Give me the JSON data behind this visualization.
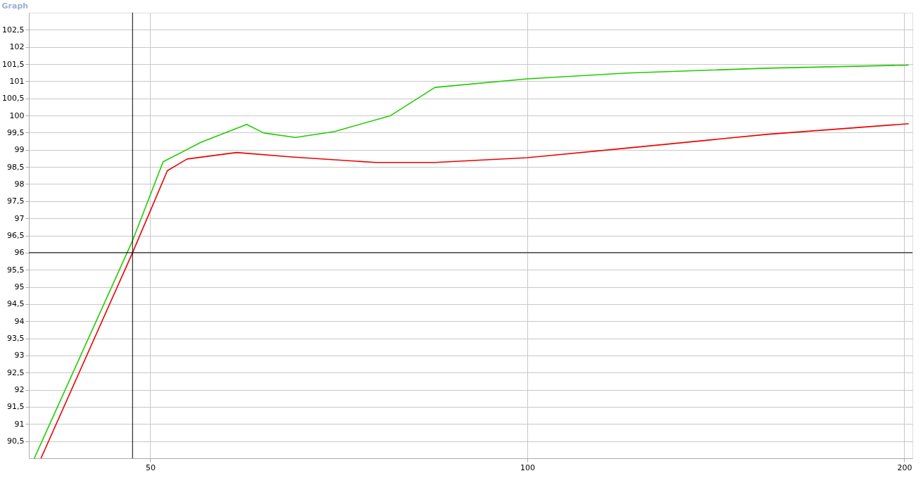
{
  "chart_data": {
    "type": "line",
    "title": "Graph",
    "log": "x",
    "grid": true,
    "marker": "none",
    "line_style": "solid",
    "xlim": [
      40,
      203
    ],
    "xticks": [
      50,
      100,
      200
    ],
    "ylim": [
      90,
      103
    ],
    "yticks": [
      {
        "value": 90.5,
        "label": "90,5"
      },
      91,
      {
        "value": 91.5,
        "label": "91,5"
      },
      92,
      {
        "value": 92.5,
        "label": "92,5"
      },
      93,
      {
        "value": 93.5,
        "label": "93,5"
      },
      94,
      {
        "value": 94.5,
        "label": "94,5"
      },
      95,
      {
        "value": 95.5,
        "label": "95,5"
      },
      96,
      {
        "value": 96.5,
        "label": "96,5"
      },
      97,
      {
        "value": 97.5,
        "label": "97,5"
      },
      98,
      {
        "value": 98.5,
        "label": "98,5"
      },
      99,
      {
        "value": 99.5,
        "label": "99,5"
      },
      100,
      {
        "value": 100.5,
        "label": "100,5"
      },
      101,
      {
        "value": 101.5,
        "label": "101,5"
      },
      102,
      {
        "value": 102.5,
        "label": "102,5"
      }
    ],
    "series": [
      {
        "color": "#22cc00",
        "x": [
          40.4,
          48.4,
          51.2,
          54.9,
          59.7,
          61.6,
          65.3,
          70.1,
          77.7,
          84.4,
          100,
          120.1,
          155.3,
          201.6
        ],
        "values": [
          90.0,
          96.35,
          98.65,
          99.22,
          99.74,
          99.49,
          99.36,
          99.53,
          99.99,
          100.82,
          101.07,
          101.24,
          101.38,
          101.47
        ]
      },
      {
        "color": "#ee0000",
        "x": [
          40.9,
          48.4,
          51.6,
          53.5,
          58.6,
          64.9,
          75.7,
          84.4,
          100,
          120.1,
          155.3,
          201.6
        ],
        "values": [
          90.0,
          96.0,
          98.39,
          98.73,
          98.92,
          98.79,
          98.63,
          98.63,
          98.77,
          99.05,
          99.45,
          99.76
        ]
      }
    ],
    "ref_lines": [
      {
        "axis": "x",
        "value": 48.4,
        "color": "#000000"
      },
      {
        "axis": "y",
        "value": 96,
        "color": "#000000"
      }
    ]
  }
}
